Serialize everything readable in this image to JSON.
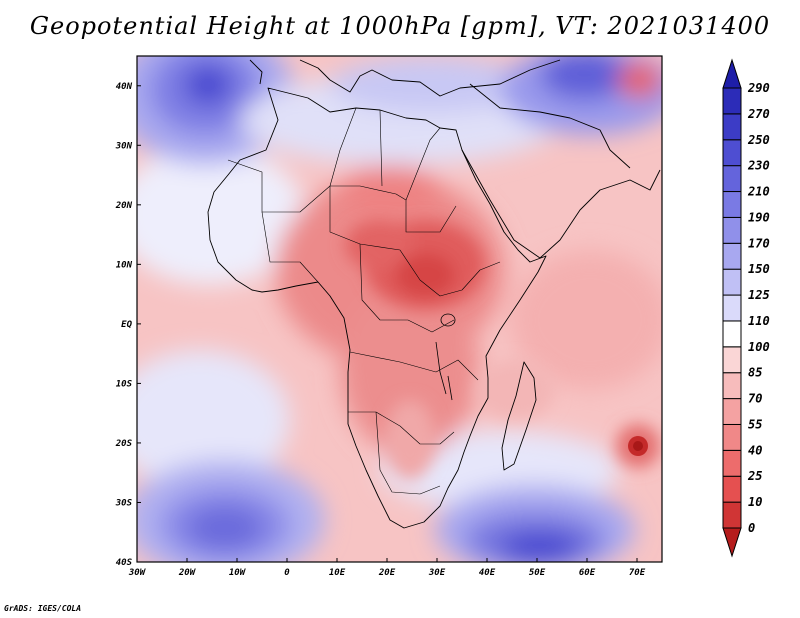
{
  "title": "Geopotential Height at 1000hPa [gpm], VT: 2021031400",
  "credit": "GrADS: IGES/COLA",
  "map": {
    "variable": "Geopotential Height",
    "level": "1000hPa",
    "units": "gpm",
    "valid_time": "2021031400",
    "lon_range": [
      -30,
      75
    ],
    "lat_range": [
      -40,
      45
    ],
    "lon_ticks": [
      {
        "value": -30,
        "label": "30W"
      },
      {
        "value": -20,
        "label": "20W"
      },
      {
        "value": -10,
        "label": "10W"
      },
      {
        "value": 0,
        "label": "0"
      },
      {
        "value": 10,
        "label": "10E"
      },
      {
        "value": 20,
        "label": "20E"
      },
      {
        "value": 30,
        "label": "30E"
      },
      {
        "value": 40,
        "label": "40E"
      },
      {
        "value": 50,
        "label": "50E"
      },
      {
        "value": 60,
        "label": "60E"
      },
      {
        "value": 70,
        "label": "70E"
      }
    ],
    "lat_ticks": [
      {
        "value": 40,
        "label": "40N"
      },
      {
        "value": 30,
        "label": "30N"
      },
      {
        "value": 20,
        "label": "20N"
      },
      {
        "value": 10,
        "label": "10N"
      },
      {
        "value": 0,
        "label": "EQ"
      },
      {
        "value": -10,
        "label": "10S"
      },
      {
        "value": -20,
        "label": "20S"
      },
      {
        "value": -30,
        "label": "30S"
      },
      {
        "value": -40,
        "label": "40S"
      }
    ]
  },
  "colorbar": {
    "levels": [
      "0",
      "10",
      "25",
      "40",
      "55",
      "70",
      "85",
      "100",
      "110",
      "125",
      "150",
      "170",
      "190",
      "210",
      "230",
      "250",
      "270",
      "290"
    ],
    "colors": [
      "#b51c1c",
      "#d03535",
      "#e55050",
      "#ed6c6c",
      "#f08888",
      "#f4a2a2",
      "#f7bcbc",
      "#fad6d6",
      "#ffffff",
      "#dadafa",
      "#c0c0f5",
      "#a8a8f0",
      "#9090ea",
      "#7a7ae4",
      "#6464dc",
      "#4e4ed2",
      "#3c3cc6",
      "#2c2cb8",
      "#1e1ea8"
    ]
  }
}
